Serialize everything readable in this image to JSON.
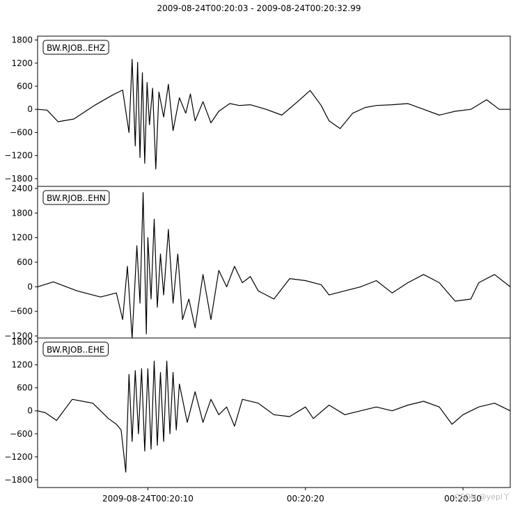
{
  "figure": {
    "title": "2009-08-24T00:20:03  -  2009-08-24T00:20:32.99",
    "watermark": "CSDN @yepl丫"
  },
  "chart_data": [
    {
      "type": "line",
      "trace_label": "BW.RJOB..EHZ",
      "xlim": [
        3.0,
        33.0
      ],
      "ylim": [
        -2000,
        1900
      ],
      "y_ticks": [
        -1800,
        -1200,
        -600,
        0,
        600,
        1200,
        1800
      ],
      "y_tick_labels": [
        "−1800",
        "−1200",
        "−600",
        "0",
        "600",
        "1200",
        "1800"
      ],
      "grid": false,
      "x": [
        3.0,
        3.6,
        4.3,
        5.3,
        6.6,
        7.8,
        8.4,
        8.8,
        9.0,
        9.2,
        9.35,
        9.5,
        9.65,
        9.8,
        9.95,
        10.1,
        10.3,
        10.5,
        10.7,
        11.0,
        11.3,
        11.6,
        12.0,
        12.4,
        12.7,
        13.0,
        13.5,
        14.0,
        14.5,
        15.2,
        15.8,
        16.5,
        17.5,
        18.5,
        19.5,
        20.3,
        21.0,
        21.5,
        22.2,
        23.0,
        23.8,
        24.5,
        25.5,
        26.5,
        27.5,
        28.5,
        29.5,
        30.5,
        31.5,
        32.3,
        33.0
      ],
      "values": [
        0,
        -20,
        -320,
        -250,
        100,
        380,
        500,
        -600,
        1300,
        -950,
        1220,
        -1250,
        950,
        -1400,
        700,
        -400,
        550,
        -1550,
        450,
        -200,
        650,
        -550,
        300,
        -100,
        400,
        -300,
        200,
        -350,
        -50,
        150,
        100,
        120,
        0,
        -150,
        200,
        490,
        100,
        -300,
        -500,
        -100,
        50,
        100,
        120,
        150,
        0,
        -150,
        -50,
        0,
        250,
        0,
        0
      ]
    },
    {
      "type": "line",
      "trace_label": "BW.RJOB..EHN",
      "xlim": [
        3.0,
        33.0
      ],
      "ylim": [
        -1250,
        2450
      ],
      "y_ticks": [
        -1200,
        -600,
        0,
        600,
        1200,
        1800,
        2400
      ],
      "y_tick_labels": [
        "−1200",
        "−600",
        "0",
        "600",
        "1200",
        "1800",
        "2400"
      ],
      "grid": false,
      "x": [
        3.0,
        4.0,
        5.5,
        7.0,
        8.0,
        8.4,
        8.7,
        9.0,
        9.3,
        9.5,
        9.7,
        9.9,
        10.0,
        10.2,
        10.4,
        10.6,
        10.8,
        11.0,
        11.3,
        11.6,
        11.9,
        12.2,
        12.6,
        13.0,
        13.5,
        14.0,
        14.5,
        15.0,
        15.5,
        16.0,
        16.5,
        17.0,
        18.0,
        19.0,
        20.0,
        21.0,
        21.5,
        22.5,
        23.5,
        24.5,
        25.5,
        26.5,
        27.5,
        28.5,
        29.5,
        30.5,
        31.0,
        32.0,
        33.0
      ],
      "values": [
        0,
        120,
        -100,
        -250,
        -150,
        -800,
        500,
        -1250,
        1000,
        -400,
        2300,
        -1150,
        1200,
        -300,
        1650,
        -500,
        800,
        -200,
        1400,
        -400,
        800,
        -800,
        -300,
        -1000,
        300,
        -800,
        400,
        0,
        500,
        100,
        250,
        -100,
        -300,
        200,
        150,
        50,
        -200,
        -100,
        0,
        150,
        -150,
        100,
        300,
        100,
        -350,
        -300,
        100,
        300,
        0
      ]
    },
    {
      "type": "line",
      "trace_label": "BW.RJOB..EHE",
      "xlim": [
        3.0,
        33.0
      ],
      "ylim": [
        -2000,
        1900
      ],
      "y_ticks": [
        -1800,
        -1200,
        -600,
        0,
        600,
        1200,
        1800
      ],
      "y_tick_labels": [
        "−1800",
        "−1200",
        "−600",
        "0",
        "600",
        "1200",
        "1800"
      ],
      "grid": false,
      "x": [
        3.0,
        3.5,
        4.2,
        5.2,
        6.5,
        7.5,
        8.0,
        8.3,
        8.6,
        8.8,
        9.0,
        9.2,
        9.4,
        9.6,
        9.8,
        10.0,
        10.2,
        10.4,
        10.6,
        10.8,
        11.0,
        11.2,
        11.4,
        11.6,
        11.8,
        12.0,
        12.5,
        13.0,
        13.5,
        14.0,
        14.5,
        15.0,
        15.5,
        16.0,
        17.0,
        18.0,
        19.0,
        20.0,
        20.5,
        21.5,
        22.5,
        23.5,
        24.5,
        25.5,
        26.5,
        27.5,
        28.5,
        29.3,
        30.0,
        31.0,
        32.0,
        33.0
      ],
      "values": [
        0,
        -50,
        -250,
        300,
        200,
        -200,
        -350,
        -500,
        -1600,
        950,
        -800,
        1050,
        -600,
        1100,
        -1050,
        1100,
        -1000,
        1300,
        -900,
        1000,
        -800,
        1300,
        -600,
        1000,
        -500,
        700,
        -300,
        500,
        -300,
        300,
        -100,
        100,
        -400,
        300,
        200,
        -100,
        -150,
        100,
        -200,
        150,
        -100,
        0,
        100,
        0,
        150,
        250,
        100,
        -350,
        -100,
        100,
        200,
        0
      ]
    }
  ],
  "shared_x_axis": {
    "ticks": [
      10,
      20,
      30
    ],
    "tick_labels": [
      "2009-08-24T00:20:10",
      "00:20:20",
      "00:20:30"
    ]
  }
}
